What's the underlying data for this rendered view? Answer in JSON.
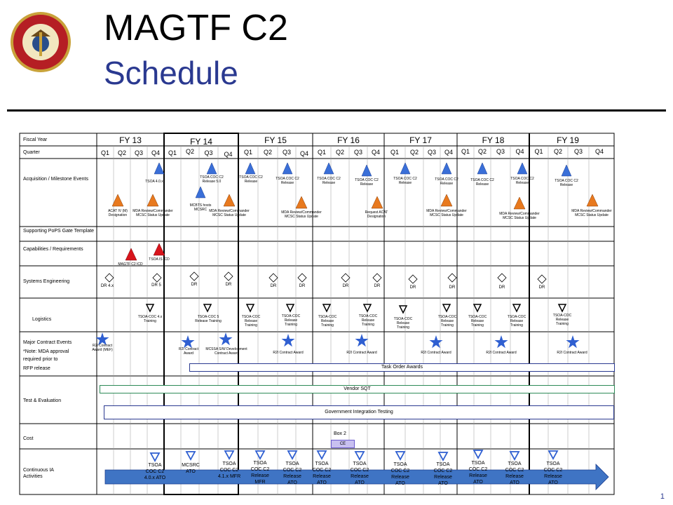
{
  "title": {
    "line1": "MAGTF C2",
    "line2": "Schedule"
  },
  "page_number": "1",
  "colors": {
    "title_blue": "#2a3990",
    "milestone_blue": "#3a6fd8",
    "milestone_orange": "#e8791e",
    "capability_red": "#d8141c",
    "ia_arrow": "#3f74c4",
    "star_blue": "#2f5fd1"
  },
  "rows": {
    "fiscal_year": "Fiscal Year",
    "quarter": "Quarter",
    "acquisition": "Acquisition / Milestone Events",
    "pops": "Supporting PoPS Gate Template",
    "capabilities": "Capabilities / Requirements",
    "systems_eng": "Systems  Engineering",
    "logistics": "Logistics",
    "contract_line1": "Major Contract  Events",
    "contract_line2": "*Note: MDA approval",
    "contract_line3": "required prior to",
    "contract_line4": "RFP release",
    "test_eval": "Test & Evaluation",
    "cost": "Cost",
    "continuous_ia": "Continuous  IA Activities"
  },
  "fiscal_years": [
    "FY 13",
    "FY 14",
    "FY 15",
    "FY 16",
    "FY 17",
    "FY 18",
    "FY 19"
  ],
  "quarters": [
    "Q1",
    "Q2",
    "Q3",
    "Q4",
    "Q1",
    "Q2",
    "Q3",
    "Q4",
    "Q1",
    "Q2",
    "Q3",
    "Q4",
    "Q1",
    "Q2",
    "Q3",
    "Q4",
    "Q1",
    "Q2",
    "Q3",
    "Q4",
    "Q1",
    "Q2",
    "Q3",
    "Q4",
    "Q1",
    "Q2",
    "Q3",
    "Q4"
  ],
  "acq_blue": [
    "TSOA 4.0.x",
    "TSOA COC C2 Release 5.0",
    "MCBTS hosts MCSRC",
    "TSOA COC C2 Release",
    "TSOA COC C2 Release",
    "TSOA COC C2 Release",
    "TSOA COC C2 Release",
    "TSOA COC C2 Release",
    "TSOA COC C2 Release",
    "TSOA COC C2 Release",
    "TSOA COC C2 Release",
    "TSOA COC C2 Release"
  ],
  "acq_orange": [
    "ACAT IV (M) Designation",
    "MDA Review/Commander MCSC Status Update",
    "MDA Review/Commander MCSC Status Update",
    "MDA Review/Commander MCSC Status Update",
    "Request ACAT Designation",
    "MDA Review/Commander MCSC Status Update",
    "MDA Review/Commander MCSC Status Update",
    "MDA Review/Commander MCSC Status Update"
  ],
  "capabilities": [
    "MAGTF C2 ICD",
    "TSOA IS ICD"
  ],
  "dr": [
    "DR 4.x",
    "DR 5",
    "DR",
    "DR",
    "DR",
    "DR",
    "DR",
    "DR",
    "DR",
    "DR",
    "DR",
    "DR"
  ],
  "logistics": [
    "TSOA-COC 4.x Training",
    "TSOA-COC 5 Release Training",
    "TSOA-COC Release Training",
    "TSOA-COC Release Training",
    "TSOA-COC Release Training",
    "TSOA-COC Release Training",
    "TSOA-COC Release Training",
    "TSOA-COC Release Training",
    "TSOA-COC Release Training",
    "TSOA-COC Release Training",
    "TSOA-COC Release Training"
  ],
  "contracts": [
    "R2I Contract Award (MEF)",
    "R2I Contract Award",
    "MCSSA S/W Development Contract Award",
    "R2I Contract Award",
    "R2I Contract Award",
    "R2I Contract Award",
    "R2I Contract Award",
    "R2I Contract Award"
  ],
  "bands": {
    "task_order": "Task Order Awards",
    "vendor_sqt": "Vendor SQT",
    "git": "Government  Integration  Testing"
  },
  "cost": {
    "box": "Box 2",
    "ce": "CE"
  },
  "ia": [
    "TSOA COC C2 4.0.x ATO",
    "MCSRC ATO",
    "TSOA COC C2 4.1.x MFR",
    "TSOA COC C2 Release MFR",
    "TSOA COC C2 Release ATO",
    "TSOA COC C2 Release ATO",
    "TSOA COC C2 Release ATO",
    "TSOA COC C2 Release ATO",
    "TSOA COC C2 Release ATO",
    "TSOA COC C2 Release ATO",
    "TSOA COC C2 Release ATO",
    "TSOA COC C2 Release ATO"
  ]
}
